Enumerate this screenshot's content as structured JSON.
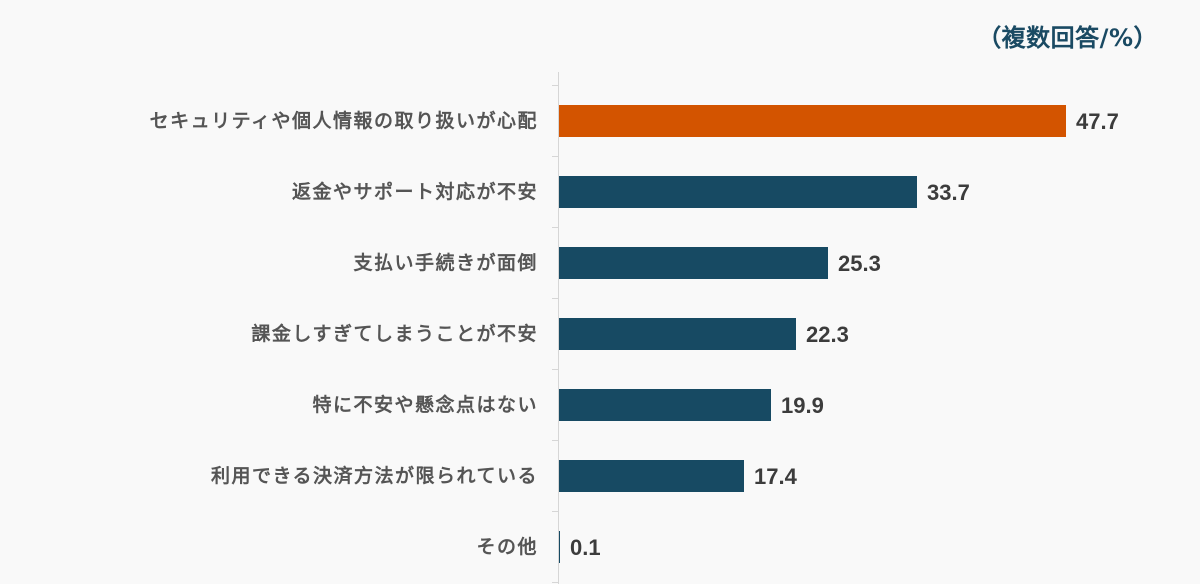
{
  "note": "（複数回答/%）",
  "colors": {
    "highlight": "#d35400",
    "default": "#174a63",
    "background": "#f9f9f9",
    "axis": "#d6d6d6",
    "note_text": "#1a4a63"
  },
  "chart_data": {
    "type": "bar",
    "orientation": "horizontal",
    "title": "",
    "annotation": "（複数回答/%）",
    "xlabel": "",
    "ylabel": "",
    "unit": "%",
    "grid": false,
    "legend": null,
    "xlim": [
      0,
      50
    ],
    "categories": [
      "セキュリティや個人情報の取り扱いが心配",
      "返金やサポート対応が不安",
      "支払い手続きが面倒",
      "課金しすぎてしまうことが不安",
      "特に不安や懸念点はない",
      "利用できる決済方法が限られている",
      "その他"
    ],
    "values": [
      47.7,
      33.7,
      25.3,
      22.3,
      19.9,
      17.4,
      0.1
    ],
    "value_labels": [
      "47.7",
      "33.7",
      "25.3",
      "22.3",
      "19.9",
      "17.4",
      "0.1"
    ],
    "highlight_index": 0
  }
}
